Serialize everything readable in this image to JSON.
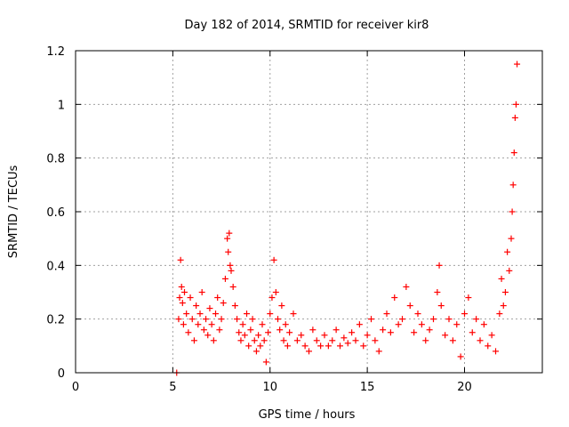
{
  "chart_data": {
    "type": "scatter",
    "title": "Day 182 of 2014, SRMTID for receiver kir8",
    "xlabel": "GPS time / hours",
    "ylabel": "SRMTID / TECUs",
    "xlim": [
      0,
      24
    ],
    "ylim": [
      0,
      1.2
    ],
    "xticks": [
      0,
      5,
      10,
      15,
      20
    ],
    "xtick_labels": [
      "0",
      "5",
      "10",
      "15",
      "20"
    ],
    "yticks": [
      0,
      0.2,
      0.4,
      0.6,
      0.8,
      1,
      1.2
    ],
    "ytick_labels": [
      "0",
      "0.2",
      "0.4",
      "0.6",
      "0.8",
      "1",
      "1.2"
    ],
    "grid": true,
    "marker": "+",
    "marker_color": "#ff0000",
    "series": [
      {
        "name": "kir8",
        "x": [
          5.2,
          5.3,
          5.35,
          5.4,
          5.45,
          5.5,
          5.55,
          5.6,
          5.7,
          5.8,
          5.9,
          6.0,
          6.1,
          6.2,
          6.3,
          6.4,
          6.5,
          6.6,
          6.7,
          6.8,
          6.9,
          7.0,
          7.1,
          7.2,
          7.3,
          7.4,
          7.5,
          7.6,
          7.7,
          7.8,
          7.85,
          7.9,
          7.95,
          8.0,
          8.1,
          8.2,
          8.3,
          8.4,
          8.5,
          8.6,
          8.7,
          8.8,
          8.9,
          9.0,
          9.1,
          9.2,
          9.3,
          9.4,
          9.5,
          9.6,
          9.7,
          9.8,
          9.9,
          10.0,
          10.1,
          10.2,
          10.3,
          10.4,
          10.5,
          10.6,
          10.7,
          10.8,
          10.9,
          11.0,
          11.2,
          11.4,
          11.6,
          11.8,
          12.0,
          12.2,
          12.4,
          12.6,
          12.8,
          13.0,
          13.2,
          13.4,
          13.6,
          13.8,
          14.0,
          14.2,
          14.4,
          14.6,
          14.8,
          15.0,
          15.2,
          15.4,
          15.6,
          15.8,
          16.0,
          16.2,
          16.4,
          16.6,
          16.8,
          17.0,
          17.2,
          17.4,
          17.6,
          17.8,
          18.0,
          18.2,
          18.4,
          18.6,
          18.7,
          18.8,
          19.0,
          19.2,
          19.4,
          19.6,
          19.8,
          20.0,
          20.2,
          20.4,
          20.6,
          20.8,
          21.0,
          21.2,
          21.4,
          21.6,
          21.8,
          21.9,
          22.0,
          22.1,
          22.2,
          22.3,
          22.4,
          22.45,
          22.5,
          22.55,
          22.6,
          22.65,
          22.7
        ],
        "y": [
          0.0,
          0.2,
          0.28,
          0.42,
          0.32,
          0.26,
          0.18,
          0.3,
          0.22,
          0.15,
          0.28,
          0.2,
          0.12,
          0.25,
          0.18,
          0.22,
          0.3,
          0.16,
          0.2,
          0.14,
          0.24,
          0.18,
          0.12,
          0.22,
          0.28,
          0.16,
          0.2,
          0.26,
          0.35,
          0.5,
          0.45,
          0.52,
          0.4,
          0.38,
          0.32,
          0.25,
          0.2,
          0.15,
          0.12,
          0.18,
          0.14,
          0.22,
          0.1,
          0.16,
          0.2,
          0.12,
          0.08,
          0.14,
          0.1,
          0.18,
          0.12,
          0.04,
          0.15,
          0.22,
          0.28,
          0.42,
          0.3,
          0.2,
          0.16,
          0.25,
          0.12,
          0.18,
          0.1,
          0.15,
          0.22,
          0.12,
          0.14,
          0.1,
          0.08,
          0.16,
          0.12,
          0.1,
          0.14,
          0.1,
          0.12,
          0.16,
          0.1,
          0.13,
          0.11,
          0.15,
          0.12,
          0.18,
          0.1,
          0.14,
          0.2,
          0.12,
          0.08,
          0.16,
          0.22,
          0.15,
          0.28,
          0.18,
          0.2,
          0.32,
          0.25,
          0.15,
          0.22,
          0.18,
          0.12,
          0.16,
          0.2,
          0.3,
          0.4,
          0.25,
          0.14,
          0.2,
          0.12,
          0.18,
          0.06,
          0.22,
          0.28,
          0.15,
          0.2,
          0.12,
          0.18,
          0.1,
          0.14,
          0.08,
          0.22,
          0.35,
          0.25,
          0.3,
          0.45,
          0.38,
          0.5,
          0.6,
          0.7,
          0.82,
          0.95,
          1.0,
          1.15
        ]
      }
    ]
  }
}
